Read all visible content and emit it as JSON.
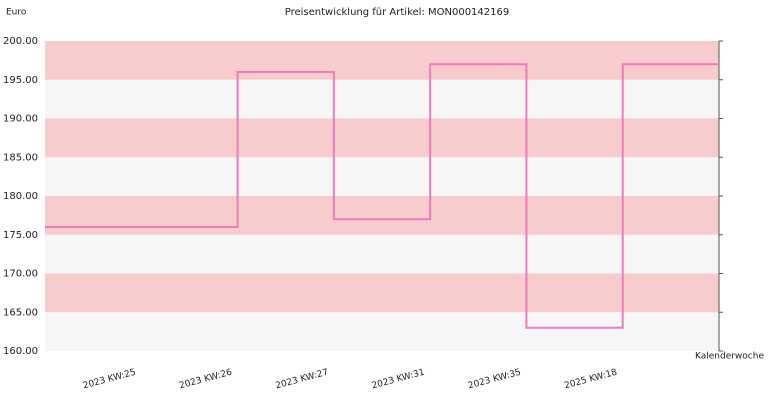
{
  "chart_data": {
    "type": "step",
    "title": "Preisentwicklung für Artikel: MON000142169",
    "y_label": "Euro",
    "x_label": "Kalenderwoche",
    "categories": [
      "2023 KW:25",
      "2023 KW:26",
      "2023 KW:27",
      "2023 KW:31",
      "2023 KW:35",
      "2025 KW:18",
      null
    ],
    "series": [
      {
        "color": "#f07ac0",
        "values": [
          176,
          176,
          196,
          177,
          197,
          163,
          197
        ]
      }
    ],
    "ylim": [
      160,
      200
    ],
    "yticks": [
      {
        "value": 160,
        "label": "160.00"
      },
      {
        "value": 165,
        "label": "165.00"
      },
      {
        "value": 170,
        "label": "170.00"
      },
      {
        "value": 175,
        "label": "175.00"
      },
      {
        "value": 180,
        "label": "180.00"
      },
      {
        "value": 185,
        "label": "185.00"
      },
      {
        "value": 190,
        "label": "190.00"
      },
      {
        "value": 195,
        "label": "195.00"
      },
      {
        "value": 200,
        "label": "200.00"
      }
    ],
    "band_colors": [
      "#f6f6f6",
      "#f8cccc"
    ]
  }
}
